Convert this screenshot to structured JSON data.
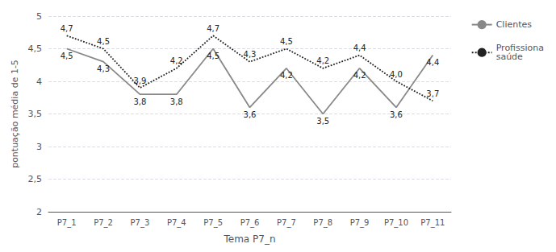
{
  "chart_data": {
    "type": "line",
    "xlabel": "Tema P7_n",
    "ylabel": "pontuação média de 1-5",
    "categories": [
      "P7_1",
      "P7_2",
      "P7_3",
      "P7_4",
      "P7_5",
      "P7_6",
      "P7_7",
      "P7_8",
      "P7_9",
      "P7_10",
      "P7_11"
    ],
    "series": [
      {
        "name": "Clientes",
        "color": "#888888",
        "line_style": "solid",
        "values": [
          4.5,
          4.3,
          3.8,
          3.8,
          4.5,
          3.6,
          4.2,
          3.5,
          4.2,
          3.6,
          4.4
        ],
        "value_labels": [
          "4,5",
          "4,3",
          "3,8",
          "3,8",
          "4,5",
          "3,6",
          "4,2",
          "3,5",
          "4,2",
          "3,6",
          "4,4"
        ]
      },
      {
        "name": "Profissiona\nsaúde",
        "color": "#222222",
        "line_style": "dotted",
        "values": [
          4.7,
          4.5,
          3.9,
          4.2,
          4.7,
          4.3,
          4.5,
          4.2,
          4.4,
          4.0,
          3.7
        ],
        "value_labels": [
          "4,7",
          "4,5",
          "3,9",
          "4,2",
          "4,7",
          "4,3",
          "4,5",
          "4,2",
          "4,4",
          "4,0",
          "3,7"
        ]
      }
    ],
    "ylim": [
      2,
      5
    ],
    "yticks": [
      2,
      {
        "value": 2.5,
        "label": "2,5"
      },
      3,
      {
        "value": 3.5,
        "label": "3,5"
      },
      4,
      {
        "value": 4.5,
        "label": "4,5"
      },
      5
    ],
    "grid": true,
    "legend": "right",
    "data_labels": true
  }
}
